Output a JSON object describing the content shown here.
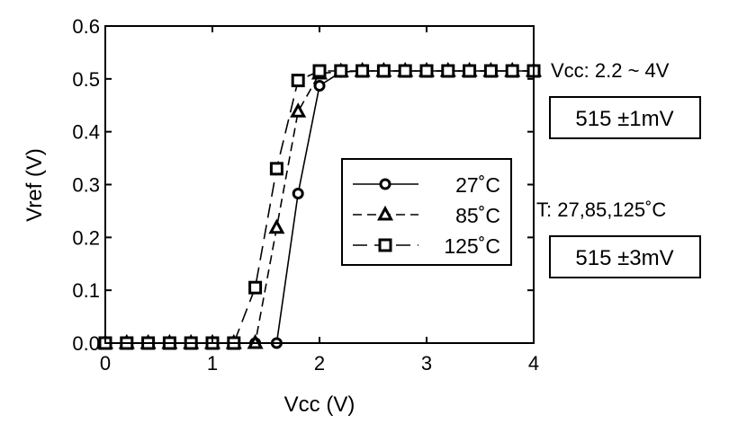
{
  "chart_data": {
    "type": "line",
    "title": "",
    "xlabel": "Vcc (V)",
    "ylabel": "Vref (V)",
    "xlim": [
      0,
      4
    ],
    "ylim": [
      0,
      0.6
    ],
    "x_ticks": [
      "0",
      "1",
      "2",
      "3",
      "4"
    ],
    "y_ticks": [
      "0.0",
      "0.1",
      "0.2",
      "0.3",
      "0.4",
      "0.5",
      "0.6"
    ],
    "grid": false,
    "legend_position": "center-right inside plot",
    "series": [
      {
        "name": "27˚C",
        "marker": "circle",
        "line_style": "solid",
        "x": [
          0,
          0.2,
          0.4,
          0.6,
          0.8,
          1.0,
          1.2,
          1.4,
          1.6,
          1.8,
          2.0,
          2.2,
          2.4,
          2.6,
          2.8,
          3.0,
          3.2,
          3.4,
          3.6,
          3.8,
          4.0
        ],
        "y": [
          0,
          0,
          0,
          0,
          0,
          0,
          0,
          0,
          0,
          0.283,
          0.487,
          0.513,
          0.515,
          0.515,
          0.515,
          0.515,
          0.515,
          0.515,
          0.515,
          0.515,
          0.515
        ]
      },
      {
        "name": "85˚C",
        "marker": "triangle",
        "line_style": "dash",
        "x": [
          0,
          0.2,
          0.4,
          0.6,
          0.8,
          1.0,
          1.2,
          1.4,
          1.6,
          1.8,
          2.0,
          2.2,
          2.4,
          2.6,
          2.8,
          3.0,
          3.2,
          3.4,
          3.6,
          3.8,
          4.0
        ],
        "y": [
          0,
          0,
          0,
          0,
          0,
          0,
          0,
          0,
          0.218,
          0.438,
          0.51,
          0.514,
          0.515,
          0.515,
          0.515,
          0.515,
          0.515,
          0.515,
          0.515,
          0.515,
          0.515
        ]
      },
      {
        "name": "125˚C",
        "marker": "square",
        "line_style": "long-dash",
        "x": [
          0,
          0.2,
          0.4,
          0.6,
          0.8,
          1.0,
          1.2,
          1.4,
          1.6,
          1.8,
          2.0,
          2.2,
          2.4,
          2.6,
          2.8,
          3.0,
          3.2,
          3.4,
          3.6,
          3.8,
          4.0
        ],
        "y": [
          0,
          0,
          0,
          0,
          0,
          0,
          0,
          0.105,
          0.33,
          0.497,
          0.515,
          0.515,
          0.515,
          0.515,
          0.515,
          0.515,
          0.515,
          0.515,
          0.515,
          0.515,
          0.515
        ]
      }
    ],
    "annotations": {
      "vcc_range": "Vcc:  2.2 ~ 4V",
      "box1": "515 ±1mV",
      "temp_range": "T:  27,85,125˚C",
      "box2": "515 ±3mV"
    }
  }
}
